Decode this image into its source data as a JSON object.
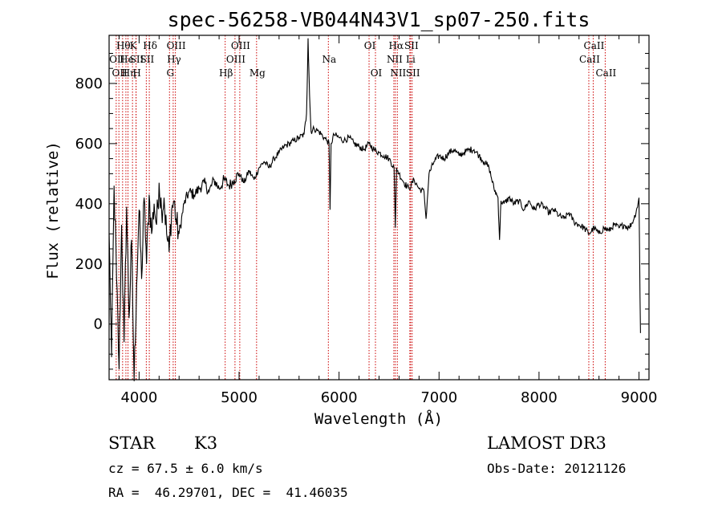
{
  "chart_data": {
    "type": "line",
    "title": "spec-56258-VB044N43V1_sp07-250.fits",
    "xlabel": "Wavelength (Å)",
    "ylabel": "Flux (relative)",
    "xlim": [
      3700,
      9100
    ],
    "ylim": [
      -185,
      960
    ],
    "xticks": [
      4000,
      5000,
      6000,
      7000,
      8000,
      9000
    ],
    "yticks": [
      0,
      200,
      400,
      600,
      800
    ],
    "spectrum_points": [
      [
        3700,
        300
      ],
      [
        3725,
        -110
      ],
      [
        3750,
        460
      ],
      [
        3775,
        150
      ],
      [
        3800,
        -150
      ],
      [
        3825,
        330
      ],
      [
        3850,
        -60
      ],
      [
        3875,
        390
      ],
      [
        3900,
        20
      ],
      [
        3925,
        280
      ],
      [
        3950,
        -190
      ],
      [
        3975,
        130
      ],
      [
        4000,
        380
      ],
      [
        4025,
        150
      ],
      [
        4050,
        420
      ],
      [
        4075,
        200
      ],
      [
        4100,
        430
      ],
      [
        4125,
        300
      ],
      [
        4150,
        400
      ],
      [
        4175,
        330
      ],
      [
        4200,
        470
      ],
      [
        4225,
        380
      ],
      [
        4250,
        420
      ],
      [
        4275,
        300
      ],
      [
        4300,
        240
      ],
      [
        4325,
        380
      ],
      [
        4350,
        410
      ],
      [
        4375,
        330
      ],
      [
        4400,
        300
      ],
      [
        4450,
        400
      ],
      [
        4500,
        440
      ],
      [
        4550,
        430
      ],
      [
        4600,
        450
      ],
      [
        4650,
        470
      ],
      [
        4700,
        440
      ],
      [
        4750,
        480
      ],
      [
        4800,
        450
      ],
      [
        4850,
        480
      ],
      [
        4900,
        460
      ],
      [
        4950,
        480
      ],
      [
        5000,
        500
      ],
      [
        5050,
        470
      ],
      [
        5100,
        510
      ],
      [
        5150,
        480
      ],
      [
        5200,
        520
      ],
      [
        5250,
        540
      ],
      [
        5300,
        520
      ],
      [
        5350,
        550
      ],
      [
        5400,
        570
      ],
      [
        5450,
        590
      ],
      [
        5500,
        600
      ],
      [
        5550,
        610
      ],
      [
        5600,
        620
      ],
      [
        5650,
        630
      ],
      [
        5675,
        700
      ],
      [
        5690,
        950
      ],
      [
        5705,
        760
      ],
      [
        5720,
        640
      ],
      [
        5750,
        650
      ],
      [
        5800,
        640
      ],
      [
        5850,
        620
      ],
      [
        5880,
        610
      ],
      [
        5900,
        600
      ],
      [
        5910,
        380
      ],
      [
        5920,
        600
      ],
      [
        5950,
        630
      ],
      [
        6000,
        620
      ],
      [
        6050,
        610
      ],
      [
        6100,
        620
      ],
      [
        6150,
        600
      ],
      [
        6200,
        590
      ],
      [
        6250,
        580
      ],
      [
        6300,
        600
      ],
      [
        6350,
        580
      ],
      [
        6400,
        570
      ],
      [
        6450,
        560
      ],
      [
        6500,
        550
      ],
      [
        6550,
        520
      ],
      [
        6563,
        320
      ],
      [
        6575,
        520
      ],
      [
        6600,
        500
      ],
      [
        6650,
        470
      ],
      [
        6700,
        450
      ],
      [
        6750,
        480
      ],
      [
        6800,
        450
      ],
      [
        6850,
        440
      ],
      [
        6870,
        350
      ],
      [
        6900,
        500
      ],
      [
        6950,
        540
      ],
      [
        7000,
        560
      ],
      [
        7050,
        550
      ],
      [
        7100,
        570
      ],
      [
        7150,
        580
      ],
      [
        7200,
        560
      ],
      [
        7250,
        570
      ],
      [
        7300,
        580
      ],
      [
        7350,
        580
      ],
      [
        7400,
        560
      ],
      [
        7450,
        540
      ],
      [
        7500,
        520
      ],
      [
        7550,
        450
      ],
      [
        7590,
        420
      ],
      [
        7605,
        280
      ],
      [
        7620,
        410
      ],
      [
        7650,
        400
      ],
      [
        7700,
        420
      ],
      [
        7750,
        400
      ],
      [
        7800,
        410
      ],
      [
        7850,
        380
      ],
      [
        7900,
        410
      ],
      [
        7950,
        380
      ],
      [
        8000,
        400
      ],
      [
        8050,
        390
      ],
      [
        8100,
        370
      ],
      [
        8150,
        380
      ],
      [
        8200,
        360
      ],
      [
        8250,
        350
      ],
      [
        8300,
        370
      ],
      [
        8350,
        340
      ],
      [
        8400,
        330
      ],
      [
        8450,
        320
      ],
      [
        8500,
        300
      ],
      [
        8550,
        320
      ],
      [
        8600,
        300
      ],
      [
        8650,
        320
      ],
      [
        8700,
        310
      ],
      [
        8750,
        330
      ],
      [
        8800,
        320
      ],
      [
        8850,
        330
      ],
      [
        8900,
        320
      ],
      [
        8950,
        350
      ],
      [
        8975,
        380
      ],
      [
        8990,
        400
      ],
      [
        9000,
        420
      ],
      [
        9010,
        90
      ],
      [
        9015,
        -30
      ]
    ],
    "line_markers": [
      {
        "wavelength": 3771,
        "label": "OII",
        "row": 2
      },
      {
        "wavelength": 3798,
        "label": "OII",
        "row": 3
      },
      {
        "wavelength": 3835,
        "label": "Hθ",
        "row": 1
      },
      {
        "wavelength": 3868,
        "label": "He",
        "row": 2
      },
      {
        "wavelength": 3889,
        "label": "Hη",
        "row": 3
      },
      {
        "wavelength": 3934,
        "label": "K",
        "row": 1
      },
      {
        "wavelength": 3969,
        "label": "SII",
        "row": 2
      },
      {
        "wavelength": 3970,
        "label": "H",
        "row": 3
      },
      {
        "wavelength": 4102,
        "label": "Hδ",
        "row": 1
      },
      {
        "wavelength": 4072,
        "label": "SII",
        "row": 2
      },
      {
        "wavelength": 4304,
        "label": "G",
        "row": 3
      },
      {
        "wavelength": 4341,
        "label": "Hγ",
        "row": 2
      },
      {
        "wavelength": 4363,
        "label": "OIII",
        "row": 1
      },
      {
        "wavelength": 4861,
        "label": "Hβ",
        "row": 3
      },
      {
        "wavelength": 4959,
        "label": "OIII",
        "row": 2
      },
      {
        "wavelength": 5007,
        "label": "OIII",
        "row": 1
      },
      {
        "wavelength": 5175,
        "label": "Mg",
        "row": 3
      },
      {
        "wavelength": 5893,
        "label": "Na",
        "row": 2
      },
      {
        "wavelength": 6300,
        "label": "OI",
        "row": 1
      },
      {
        "wavelength": 6364,
        "label": "OI",
        "row": 3
      },
      {
        "wavelength": 6548,
        "label": "NII",
        "row": 2
      },
      {
        "wavelength": 6563,
        "label": "Hα",
        "row": 1
      },
      {
        "wavelength": 6583,
        "label": "NII",
        "row": 3
      },
      {
        "wavelength": 6708,
        "label": "Li",
        "row": 2
      },
      {
        "wavelength": 6716,
        "label": "SII",
        "row": 1
      },
      {
        "wavelength": 6731,
        "label": "SII",
        "row": 3
      },
      {
        "wavelength": 8498,
        "label": "CaII",
        "row": 2
      },
      {
        "wavelength": 8542,
        "label": "CaII",
        "row": 1
      },
      {
        "wavelength": 8662,
        "label": "CaII",
        "row": 3
      }
    ]
  },
  "info": {
    "class_label": "STAR",
    "subclass": "K3",
    "survey": "LAMOST DR3",
    "cz": "cz = 67.5 ± 6.0 km/s",
    "obs_date": "Obs-Date: 20121126",
    "coords": "RA =  46.29701, DEC =  41.46035"
  },
  "colors": {
    "spectrum": "#000000",
    "marker": "#cc0000",
    "axes": "#000000"
  }
}
